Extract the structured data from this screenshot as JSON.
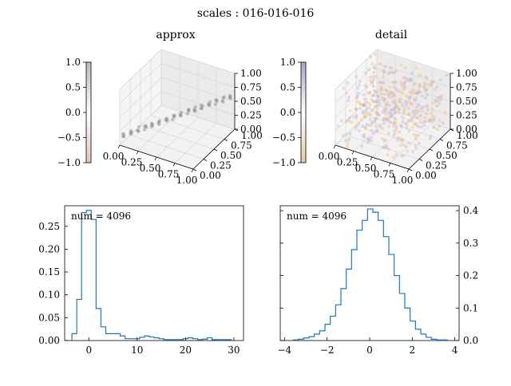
{
  "figure": {
    "suptitle": "scales : 016-016-016"
  },
  "chart_data": [
    {
      "type": "scatter",
      "subtype": "3d",
      "title": "approx",
      "colorbar": {
        "ticks": [
          "1.0",
          "0.5",
          "0.0",
          "−0.5",
          "−1.0"
        ],
        "colors": [
          "#bbbbbb",
          "#ffffff",
          "#e8c4bc"
        ]
      },
      "x_ticks": [
        "0.00",
        "0.25",
        "0.50",
        "0.75",
        "1.00"
      ],
      "y_ticks": [
        "0.00",
        "0.25",
        "0.50",
        "0.75",
        "1.00"
      ],
      "z_ticks": [
        "0.00",
        "0.25",
        "0.50",
        "0.75",
        "1.00"
      ],
      "xlim": [
        0,
        1
      ],
      "ylim": [
        0,
        1
      ],
      "zlim": [
        0,
        1
      ],
      "point_color": "#8a8a8a",
      "description_series": "points concentrated along x = y plane at low z, diagonal band",
      "grid": true
    },
    {
      "type": "scatter",
      "subtype": "3d",
      "title": "detail",
      "colorbar": {
        "ticks": [
          "1.0",
          "0.5",
          "0.0",
          "−0.5",
          "−1.0"
        ],
        "colors": [
          "#b0a3c8",
          "#ffffff",
          "#e8c8a8"
        ]
      },
      "x_ticks": [
        "0.00",
        "0.25",
        "0.50",
        "0.75",
        "1.00"
      ],
      "y_ticks": [
        "0.00",
        "0.25",
        "0.50",
        "0.75",
        "1.00"
      ],
      "z_ticks": [
        "0.00",
        "0.25",
        "0.50",
        "0.75",
        "1.00"
      ],
      "xlim": [
        0,
        1
      ],
      "ylim": [
        0,
        1
      ],
      "zlim": [
        0,
        1
      ],
      "point_colors": [
        "#f5b26b",
        "#b3a7d0"
      ],
      "grid": true
    },
    {
      "type": "histogram",
      "annotation": "num = 4096",
      "xlim": [
        -5,
        32
      ],
      "ylim": [
        0,
        0.295
      ],
      "x_ticks": [
        0,
        10,
        20,
        30
      ],
      "x_tick_labels": [
        "0",
        "10",
        "20",
        "30"
      ],
      "y_ticks": [
        0,
        0.05,
        0.1,
        0.15,
        0.2,
        0.25
      ],
      "y_tick_labels": [
        "0.00",
        "0.05",
        "0.10",
        "0.15",
        "0.20",
        "0.25"
      ],
      "color": "#1f77b4",
      "bins": [
        -3.5,
        -2.5,
        -1.5,
        -0.5,
        0.5,
        1.5,
        2.5,
        3.5,
        4.5,
        5.5,
        6.5,
        7.5,
        8.5,
        9.5,
        10.5,
        11.5,
        12.5,
        13.5,
        14.5,
        15.5,
        16.5,
        17.5,
        18.5,
        19.5,
        20.5,
        21.5,
        22.5,
        23.5,
        24.5,
        25.5,
        26.5,
        27.5,
        28.5,
        29.5
      ],
      "values": [
        0.015,
        0.09,
        0.28,
        0.285,
        0.265,
        0.07,
        0.03,
        0.015,
        0.015,
        0.015,
        0.01,
        0.004,
        0.004,
        0.004,
        0.007,
        0.01,
        0.008,
        0.006,
        0.004,
        0.002,
        0.002,
        0.002,
        0.002,
        0.004,
        0.006,
        0.004,
        0.002,
        0.003,
        0.006,
        0.002,
        0.002,
        0.002,
        0.002
      ]
    },
    {
      "type": "histogram",
      "annotation": "num = 4096",
      "xlim": [
        -4.2,
        4.2
      ],
      "ylim": [
        0,
        0.415
      ],
      "x_ticks": [
        -4,
        -2,
        0,
        2,
        4
      ],
      "x_tick_labels": [
        "−4",
        "−2",
        "0",
        "2",
        "4"
      ],
      "y_ticks": [
        0,
        0.1,
        0.2,
        0.3,
        0.4
      ],
      "y_tick_labels": [
        "0.0",
        "0.1",
        "0.2",
        "0.3",
        "0.4"
      ],
      "y_axis_side": "right",
      "color": "#1f77b4",
      "bins": [
        -3.6,
        -3.35,
        -3.1,
        -2.85,
        -2.6,
        -2.35,
        -2.1,
        -1.85,
        -1.6,
        -1.35,
        -1.1,
        -0.85,
        -0.6,
        -0.35,
        -0.1,
        0.15,
        0.4,
        0.65,
        0.9,
        1.15,
        1.4,
        1.65,
        1.9,
        2.15,
        2.4,
        2.65,
        2.9,
        3.15,
        3.4,
        3.65
      ],
      "values": [
        0.002,
        0.004,
        0.008,
        0.012,
        0.02,
        0.03,
        0.05,
        0.075,
        0.11,
        0.16,
        0.22,
        0.28,
        0.34,
        0.37,
        0.405,
        0.395,
        0.37,
        0.32,
        0.265,
        0.2,
        0.145,
        0.1,
        0.06,
        0.035,
        0.02,
        0.01,
        0.004,
        0.002,
        0.002
      ]
    }
  ]
}
